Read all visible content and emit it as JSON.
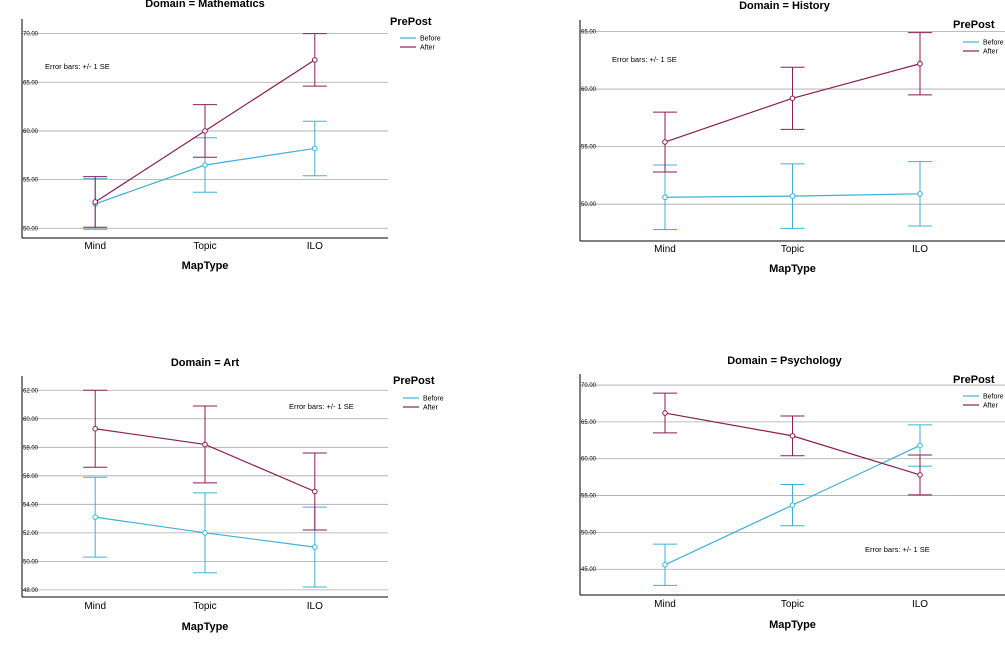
{
  "colors": {
    "before": "#3fb0d8",
    "after": "#8a1e55",
    "grid": "#a8a8a8",
    "axis": "#000000"
  },
  "chart_data": [
    {
      "type": "line",
      "title": "Domain = Mathematics",
      "xlabel": "MapType",
      "ylabel": "",
      "categories": [
        "Mind",
        "Topic",
        "ILO"
      ],
      "ylim": [
        49.0,
        71.5
      ],
      "yticks": [
        "50.00",
        "55.00",
        "60.00",
        "65.00",
        "70.00"
      ],
      "legend_title": "PrePost",
      "error_note": "Error bars: +/- 1 SE",
      "series": [
        {
          "name": "Before",
          "values": [
            52.5,
            56.5,
            58.2
          ],
          "se": [
            2.6,
            2.8,
            2.8
          ]
        },
        {
          "name": "After",
          "values": [
            52.7,
            60.0,
            67.3
          ],
          "se": [
            2.6,
            2.7,
            2.7
          ]
        }
      ]
    },
    {
      "type": "line",
      "title": "Domain = History",
      "xlabel": "MapType",
      "ylabel": "",
      "categories": [
        "Mind",
        "Topic",
        "ILO"
      ],
      "ylim": [
        46.8,
        66.0
      ],
      "yticks": [
        "50.00",
        "55.00",
        "60.00",
        "65.00"
      ],
      "legend_title": "PrePost",
      "error_note": "Error bars: +/- 1 SE",
      "series": [
        {
          "name": "Before",
          "values": [
            50.6,
            50.7,
            50.9
          ],
          "se": [
            2.8,
            2.8,
            2.8
          ]
        },
        {
          "name": "After",
          "values": [
            55.4,
            59.2,
            62.2
          ],
          "se": [
            2.6,
            2.7,
            2.7
          ]
        }
      ]
    },
    {
      "type": "line",
      "title": "Domain = Art",
      "xlabel": "MapType",
      "ylabel": "",
      "categories": [
        "Mind",
        "Topic",
        "ILO"
      ],
      "ylim": [
        47.5,
        63.0
      ],
      "yticks": [
        "48.00",
        "50.00",
        "52.00",
        "54.00",
        "56.00",
        "58.00",
        "60.00",
        "62.00"
      ],
      "legend_title": "PrePost",
      "error_note": "Error bars: +/- 1 SE",
      "series": [
        {
          "name": "Before",
          "values": [
            53.1,
            52.0,
            51.0
          ],
          "se": [
            2.8,
            2.8,
            2.8
          ]
        },
        {
          "name": "After",
          "values": [
            59.3,
            58.2,
            54.9
          ],
          "se": [
            2.7,
            2.7,
            2.7
          ]
        }
      ]
    },
    {
      "type": "line",
      "title": "Domain = Psychology",
      "xlabel": "MapType",
      "ylabel": "",
      "categories": [
        "Mind",
        "Topic",
        "ILO"
      ],
      "ylim": [
        41.5,
        71.5
      ],
      "yticks": [
        "45.00",
        "50.00",
        "55.00",
        "60.00",
        "65.00",
        "70.00"
      ],
      "legend_title": "PrePost",
      "error_note": "Error bars: +/- 1 SE",
      "series": [
        {
          "name": "Before",
          "values": [
            45.6,
            53.7,
            61.8
          ],
          "se": [
            2.8,
            2.8,
            2.8
          ]
        },
        {
          "name": "After",
          "values": [
            66.2,
            63.1,
            57.8
          ],
          "se": [
            2.7,
            2.7,
            2.7
          ]
        }
      ]
    }
  ]
}
